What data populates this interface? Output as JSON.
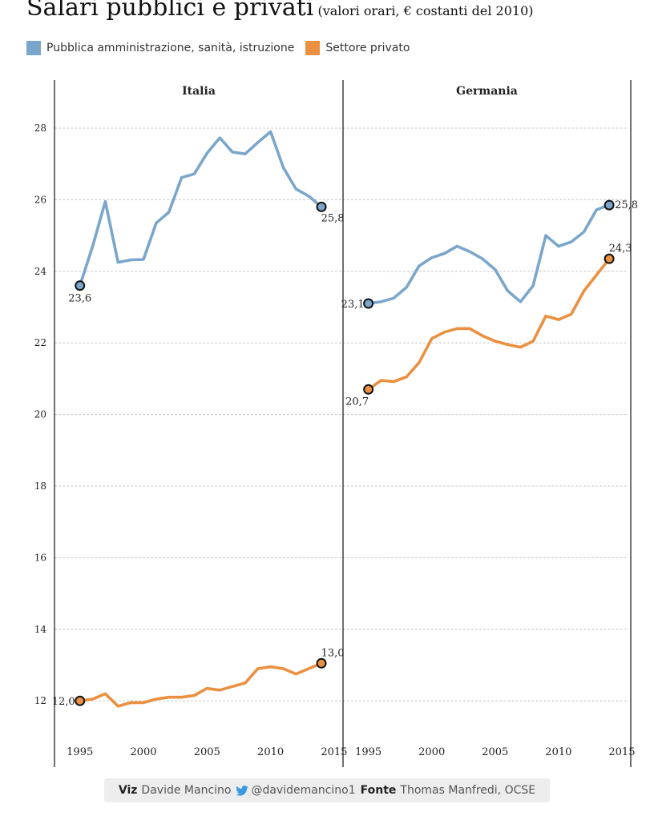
{
  "header": {
    "title": "Salari pubblici e privati",
    "subtitle": "(valori orari, € costanti del 2010)"
  },
  "legend": [
    {
      "label": "Pubblica amministrazione, sanità, istruzione",
      "color": "#7ba6cb"
    },
    {
      "label": "Settore privato",
      "color": "#ea9040"
    }
  ],
  "footer": {
    "viz_label": "Viz",
    "viz_name": "Davide Mancino",
    "twitter_icon": "twitter-bird-icon",
    "twitter_handle": "@davidemancino1",
    "source_label": "Fonte",
    "source_name": "Thomas Manfredi, OCSE"
  },
  "chart_data": {
    "type": "line",
    "ylim": [
      10.8,
      29
    ],
    "yticks": [
      12,
      14,
      16,
      18,
      20,
      22,
      24,
      26,
      28
    ],
    "xlim": [
      1993,
      2015.7
    ],
    "xticks": [
      1995,
      2000,
      2005,
      2010,
      2015
    ],
    "grid": "horizontal dashed",
    "legend_position": "top",
    "colors": {
      "public": "#7ba6cb",
      "private": "#ea9040"
    },
    "panels": [
      {
        "title": "Italia",
        "series": [
          {
            "name": "Pubblica amministrazione, sanità, istruzione",
            "key": "public",
            "x": [
              1995,
              1996,
              1997,
              1998,
              1999,
              2000,
              2001,
              2002,
              2003,
              2004,
              2005,
              2006,
              2007,
              2008,
              2009,
              2010,
              2011,
              2012,
              2013,
              2014
            ],
            "y": [
              23.6,
              24.7,
              25.95,
              24.25,
              24.32,
              24.33,
              25.35,
              25.65,
              26.62,
              26.72,
              27.3,
              27.73,
              27.33,
              27.28,
              27.6,
              27.9,
              26.9,
              26.3,
              26.1,
              25.8
            ],
            "start_label": "23,6",
            "end_label": "25,8"
          },
          {
            "name": "Settore privato",
            "key": "private",
            "x": [
              1995,
              1996,
              1997,
              1998,
              1999,
              2000,
              2001,
              2002,
              2003,
              2004,
              2005,
              2006,
              2007,
              2008,
              2009,
              2010,
              2011,
              2012,
              2013,
              2014
            ],
            "y": [
              12.0,
              12.05,
              12.2,
              11.85,
              11.95,
              11.95,
              12.05,
              12.1,
              12.1,
              12.15,
              12.35,
              12.3,
              12.4,
              12.5,
              12.9,
              12.95,
              12.9,
              12.75,
              12.9,
              13.05
            ],
            "start_label": "12,0",
            "end_label": "13,0"
          }
        ]
      },
      {
        "title": "Germania",
        "series": [
          {
            "name": "Pubblica amministrazione, sanità, istruzione",
            "key": "public",
            "x": [
              1995,
              1996,
              1997,
              1998,
              1999,
              2000,
              2001,
              2002,
              2003,
              2004,
              2005,
              2006,
              2007,
              2008,
              2009,
              2010,
              2011,
              2012,
              2013,
              2014
            ],
            "y": [
              23.1,
              23.15,
              23.25,
              23.55,
              24.15,
              24.38,
              24.5,
              24.7,
              24.55,
              24.35,
              24.05,
              23.45,
              23.15,
              23.6,
              25.0,
              24.7,
              24.82,
              25.1,
              25.72,
              25.85
            ],
            "start_label": "23,1",
            "end_label": "25,8"
          },
          {
            "name": "Settore privato",
            "key": "private",
            "x": [
              1995,
              1996,
              1997,
              1998,
              1999,
              2000,
              2001,
              2002,
              2003,
              2004,
              2005,
              2006,
              2007,
              2008,
              2009,
              2010,
              2011,
              2012,
              2013,
              2014
            ],
            "y": [
              20.7,
              20.95,
              20.92,
              21.05,
              21.45,
              22.12,
              22.3,
              22.4,
              22.4,
              22.2,
              22.05,
              21.95,
              21.88,
              22.05,
              22.75,
              22.65,
              22.8,
              23.45,
              23.9,
              24.35
            ],
            "start_label": "20,7",
            "end_label": "24,3"
          }
        ]
      }
    ]
  }
}
